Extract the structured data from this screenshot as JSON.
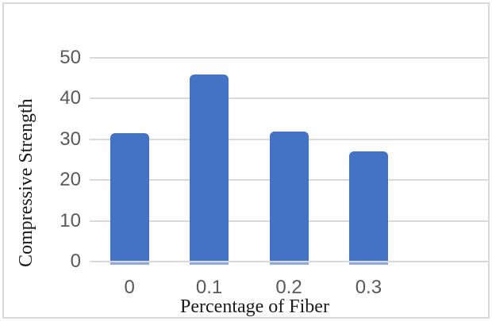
{
  "figure": {
    "background": "#ffffff",
    "border_color": "#d9d9d9"
  },
  "chart_data": {
    "type": "bar",
    "categories": [
      "0",
      "0.1",
      "0.2",
      "0.3"
    ],
    "values": [
      31.5,
      46,
      32,
      27
    ],
    "title": "",
    "xlabel": "Percentage of Fiber",
    "ylabel": "Compressive Strength",
    "yticks": [
      0,
      10,
      20,
      30,
      40,
      50
    ],
    "ylim": [
      0,
      50
    ],
    "grid": true,
    "legend": false,
    "bar_color": "#4472C4",
    "bar_foot_color": "#8fa9da",
    "gridline_color": "#d9d9d9",
    "tick_label_color": "#595959",
    "axis_title_color": "#1a1a1a"
  }
}
